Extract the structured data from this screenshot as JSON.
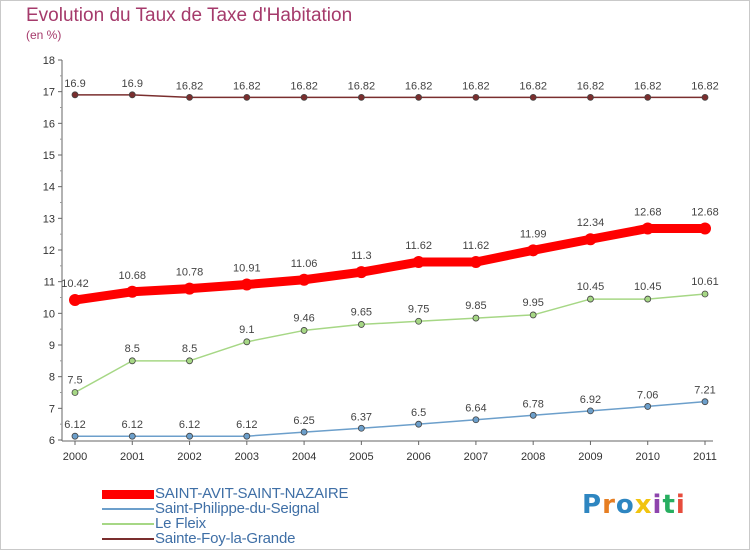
{
  "title": "Evolution du Taux de Taxe d'Habitation",
  "subtitle": "(en %)",
  "logo": {
    "text": "Proxiti",
    "colors": [
      "#2e86c1",
      "#e67e22",
      "#2e86c1",
      "#f1c40f",
      "#8e44ad",
      "#27ae60",
      "#e74c3c"
    ]
  },
  "chart_data": {
    "type": "line",
    "x": [
      "2000",
      "2001",
      "2002",
      "2003",
      "2004",
      "2005",
      "2006",
      "2007",
      "2008",
      "2009",
      "2010",
      "2011"
    ],
    "ylim": [
      6,
      18
    ],
    "yticks": [
      "6",
      "7",
      "8",
      "9",
      "10",
      "11",
      "12",
      "13",
      "14",
      "15",
      "16",
      "17",
      "18"
    ],
    "grid": false,
    "legend_position": "bottom-left",
    "series": [
      {
        "name": "SAINT-AVIT-SAINT-NAZAIRE",
        "color": "#ff0000",
        "values": [
          10.42,
          10.68,
          10.78,
          10.91,
          11.06,
          11.3,
          11.62,
          11.62,
          11.99,
          12.34,
          12.68,
          12.68
        ],
        "labels": [
          "10.42",
          "10.68",
          "10.78",
          "10.91",
          "11.06",
          "11.3",
          "11.62",
          "11.62",
          "11.99",
          "12.34",
          "12.68",
          "12.68"
        ]
      },
      {
        "name": "Saint-Philippe-du-Seignal",
        "color": "#6c9fcb",
        "values": [
          6.12,
          6.12,
          6.12,
          6.12,
          6.25,
          6.37,
          6.5,
          6.64,
          6.78,
          6.92,
          7.06,
          7.21
        ],
        "labels": [
          "6.12",
          "6.12",
          "6.12",
          "6.12",
          "6.25",
          "6.37",
          "6.5",
          "6.64",
          "6.78",
          "6.92",
          "7.06",
          "7.21"
        ]
      },
      {
        "name": "Le Fleix",
        "color": "#a6d785",
        "values": [
          7.5,
          8.5,
          8.5,
          9.1,
          9.46,
          9.65,
          9.75,
          9.85,
          9.95,
          10.45,
          10.45,
          10.61
        ],
        "labels": [
          "7.5",
          "8.5",
          "8.5",
          "9.1",
          "9.46",
          "9.65",
          "9.75",
          "9.85",
          "9.95",
          "10.45",
          "10.45",
          "10.61"
        ]
      },
      {
        "name": "Sainte-Foy-la-Grande",
        "color": "#7a2e2e",
        "values": [
          16.9,
          16.9,
          16.82,
          16.82,
          16.82,
          16.82,
          16.82,
          16.82,
          16.82,
          16.82,
          16.82,
          16.82
        ],
        "labels": [
          "16.9",
          "16.9",
          "16.82",
          "16.82",
          "16.82",
          "16.82",
          "16.82",
          "16.82",
          "16.82",
          "16.82",
          "16.82",
          "16.82"
        ]
      }
    ]
  }
}
